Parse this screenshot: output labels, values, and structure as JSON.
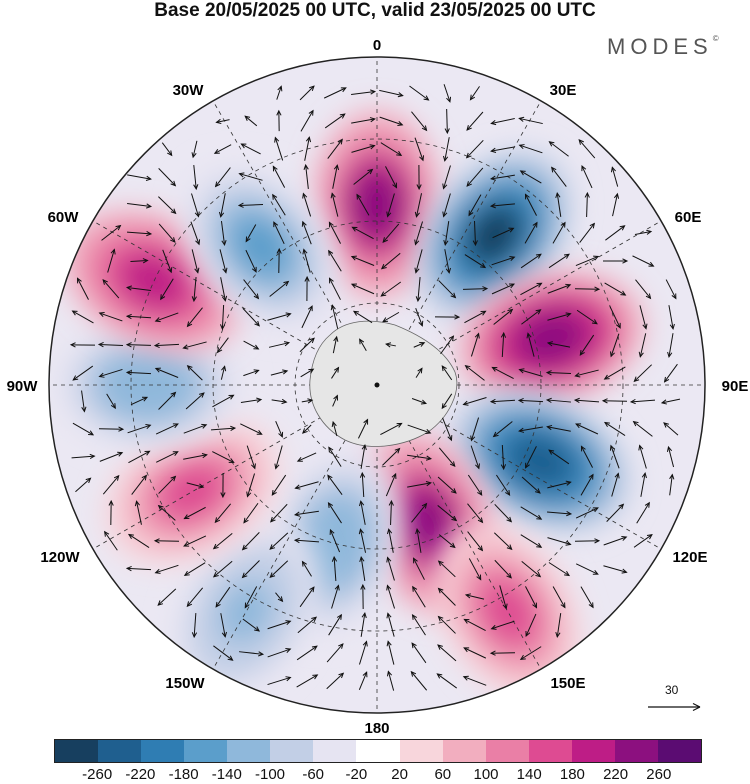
{
  "title": "Base 20/05/2025 00 UTC, valid 23/05/2025 00 UTC",
  "brand": "MODES",
  "brand_mark": "©",
  "longitude_labels": {
    "top": "0",
    "ne30": "30E",
    "ne60": "60E",
    "east": "90E",
    "se120": "120E",
    "se150": "150E",
    "bottom": "180",
    "sw150": "150W",
    "sw120": "120W",
    "west": "90W",
    "nw60": "60W",
    "nw30": "30W"
  },
  "reference_vector": {
    "value": "30"
  },
  "colorbar": {
    "colors": [
      "#173f5f",
      "#1f5f8f",
      "#2f7db3",
      "#5b9ecb",
      "#8fb8db",
      "#c2cfe6",
      "#e6e4f2",
      "#ffffff",
      "#f8d6dc",
      "#f2aebf",
      "#ea7fa6",
      "#de4b92",
      "#be1d86",
      "#8c107f",
      "#5b0c72"
    ],
    "tick_labels": [
      "-260",
      "-220",
      "-180",
      "-140",
      "-100",
      "-60",
      "-20",
      "20",
      "60",
      "100",
      "140",
      "180",
      "220",
      "260"
    ]
  },
  "anomaly_centers": [
    {
      "lon": 0,
      "rel_r": 0.55,
      "value": 240
    },
    {
      "lon": 38,
      "rel_r": 0.58,
      "value": -270
    },
    {
      "lon": 75,
      "rel_r": 0.55,
      "value": 250
    },
    {
      "lon": 115,
      "rel_r": 0.55,
      "value": -260
    },
    {
      "lon": 160,
      "rel_r": 0.45,
      "value": 230
    },
    {
      "lon": 150,
      "rel_r": 0.8,
      "value": 150
    },
    {
      "lon": -165,
      "rel_r": 0.5,
      "value": -140
    },
    {
      "lon": -150,
      "rel_r": 0.8,
      "value": -110
    },
    {
      "lon": -120,
      "rel_r": 0.65,
      "value": 140
    },
    {
      "lon": -90,
      "rel_r": 0.7,
      "value": -130
    },
    {
      "lon": -65,
      "rel_r": 0.75,
      "value": 190
    },
    {
      "lon": -40,
      "rel_r": 0.55,
      "value": -160
    }
  ]
}
